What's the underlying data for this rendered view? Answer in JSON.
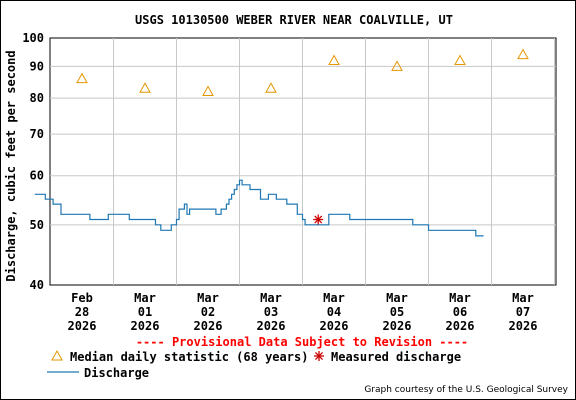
{
  "chart_data": {
    "type": "line",
    "title": "USGS 10130500 WEBER RIVER NEAR COALVILLE, UT",
    "ylabel": "Discharge, cubic feet per second",
    "xlabel": "",
    "ylim": [
      40,
      100
    ],
    "y_scale": "log",
    "y_ticks": [
      "100",
      "90",
      "80",
      "70",
      "60",
      "50",
      "40"
    ],
    "y_tick_values": [
      100,
      90,
      80,
      70,
      60,
      50,
      40
    ],
    "x_ticks": [
      {
        "mon": "Feb",
        "day": "28",
        "year": "2026"
      },
      {
        "mon": "Mar",
        "day": "01",
        "year": "2026"
      },
      {
        "mon": "Mar",
        "day": "02",
        "year": "2026"
      },
      {
        "mon": "Mar",
        "day": "03",
        "year": "2026"
      },
      {
        "mon": "Mar",
        "day": "04",
        "year": "2026"
      },
      {
        "mon": "Mar",
        "day": "05",
        "year": "2026"
      },
      {
        "mon": "Mar",
        "day": "06",
        "year": "2026"
      },
      {
        "mon": "Mar",
        "day": "07",
        "year": "2026"
      }
    ],
    "grid": true,
    "series": [
      {
        "name": "Median daily statistic (68 years)",
        "kind": "triangle-marker",
        "color": "#e69600",
        "x": [
          "2026-02-28 12:00",
          "2026-03-01 12:00",
          "2026-03-02 12:00",
          "2026-03-03 12:00",
          "2026-03-04 12:00",
          "2026-03-05 12:00",
          "2026-03-06 12:00",
          "2026-03-07 12:00"
        ],
        "values": [
          86,
          83,
          82,
          83,
          92,
          90,
          92,
          94
        ]
      },
      {
        "name": "Measured discharge",
        "kind": "star-marker",
        "color": "#cc0000",
        "x": [
          "2026-03-04 06:00"
        ],
        "values": [
          51
        ]
      },
      {
        "name": "Discharge",
        "kind": "line",
        "color": "#1f77b4",
        "x": [
          "2026-02-27 18:00",
          "2026-02-27 22:00",
          "2026-02-28 01:00",
          "2026-02-28 04:00",
          "2026-02-28 12:00",
          "2026-02-28 15:00",
          "2026-02-28 21:00",
          "2026-02-28 22:00",
          "2026-03-01 05:00",
          "2026-03-01 06:00",
          "2026-03-01 15:00",
          "2026-03-01 16:00",
          "2026-03-01 18:00",
          "2026-03-01 19:00",
          "2026-03-01 22:00",
          "2026-03-01 23:00",
          "2026-03-02 00:00",
          "2026-03-02 01:00",
          "2026-03-02 02:00",
          "2026-03-02 03:00",
          "2026-03-02 04:00",
          "2026-03-02 05:00",
          "2026-03-02 06:00",
          "2026-03-02 10:00",
          "2026-03-02 15:00",
          "2026-03-02 16:00",
          "2026-03-02 17:00",
          "2026-03-02 18:00",
          "2026-03-02 19:00",
          "2026-03-02 20:00",
          "2026-03-02 21:00",
          "2026-03-02 22:00",
          "2026-03-02 23:00",
          "2026-03-03 00:00",
          "2026-03-03 01:00",
          "2026-03-03 04:00",
          "2026-03-03 08:00",
          "2026-03-03 11:00",
          "2026-03-03 14:00",
          "2026-03-03 18:00",
          "2026-03-03 22:00",
          "2026-03-04 00:00",
          "2026-03-04 01:00",
          "2026-03-04 03:00",
          "2026-03-04 05:00",
          "2026-03-04 10:00",
          "2026-03-04 12:00",
          "2026-03-04 18:00",
          "2026-03-04 21:00",
          "2026-03-05 00:00",
          "2026-03-05 06:00",
          "2026-03-05 12:00",
          "2026-03-05 18:00",
          "2026-03-06 00:00",
          "2026-03-06 06:00",
          "2026-03-06 12:00",
          "2026-03-06 18:00",
          "2026-03-06 21:00"
        ],
        "values": [
          56,
          55,
          54,
          52,
          52,
          51,
          51,
          52,
          52,
          51,
          51,
          50,
          49,
          49,
          50,
          50,
          51,
          53,
          53,
          54,
          52,
          53,
          53,
          53,
          52,
          52,
          53,
          53,
          54,
          55,
          56,
          57,
          58,
          59,
          58,
          57,
          55,
          56,
          55,
          54,
          52,
          51,
          50,
          50,
          50,
          52,
          52,
          51,
          51,
          51,
          51,
          51,
          50,
          49,
          49,
          49,
          48,
          48
        ]
      }
    ],
    "annotation": "---- Provisional Data Subject to Revision ----",
    "legend_position": "bottom-left",
    "credit": "Graph courtesy of the U.S. Geological Survey"
  }
}
